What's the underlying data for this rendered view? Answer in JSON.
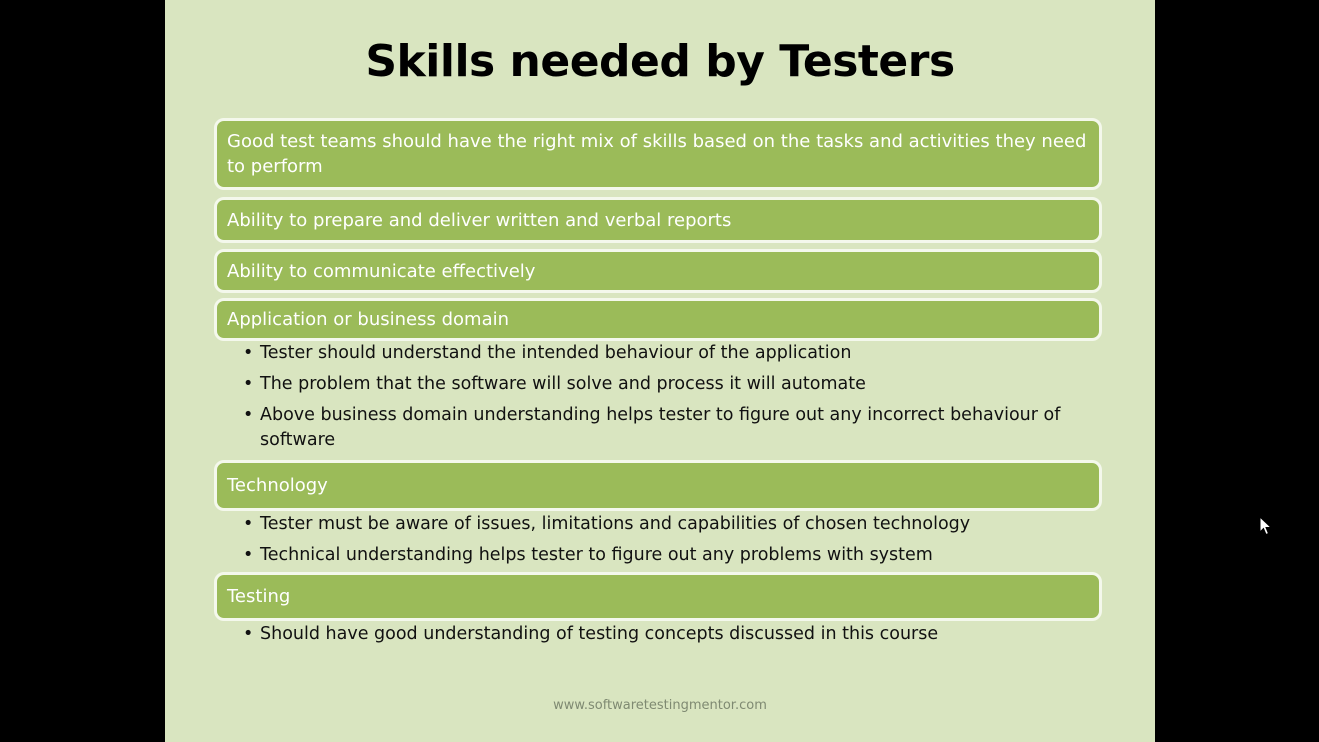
{
  "slide": {
    "title": "Skills needed by Testers",
    "boxes": [
      {
        "label": "Good test teams should have the right mix of skills based on the tasks and activities they need to perform"
      },
      {
        "label": "Ability to prepare and deliver written and verbal reports"
      },
      {
        "label": "Ability to communicate effectively"
      },
      {
        "label": "Application or business domain"
      },
      {
        "label": "Technology"
      },
      {
        "label": "Testing"
      }
    ],
    "domain_bullets": [
      "Tester should understand the intended behaviour of the application",
      "The problem that the software will solve and process it will automate",
      "Above business domain understanding helps tester to figure out any incorrect behaviour of software"
    ],
    "technology_bullets": [
      "Tester must be aware of issues, limitations and capabilities of chosen technology",
      "Technical understanding helps tester to figure out any problems with system"
    ],
    "testing_bullets": [
      "Should have good understanding of testing concepts discussed in this course"
    ],
    "bullet_glyph": "•",
    "footer": "www.softwaretestingmentor.com"
  },
  "colors": {
    "background": "#000000",
    "slide_bg": "#d9e5c0",
    "box_fill": "#9bbb59",
    "box_border": "#f4f8ec",
    "box_text": "#ffffff",
    "title_text": "#000000"
  },
  "icons": {
    "cursor": "mouse-pointer-icon"
  }
}
